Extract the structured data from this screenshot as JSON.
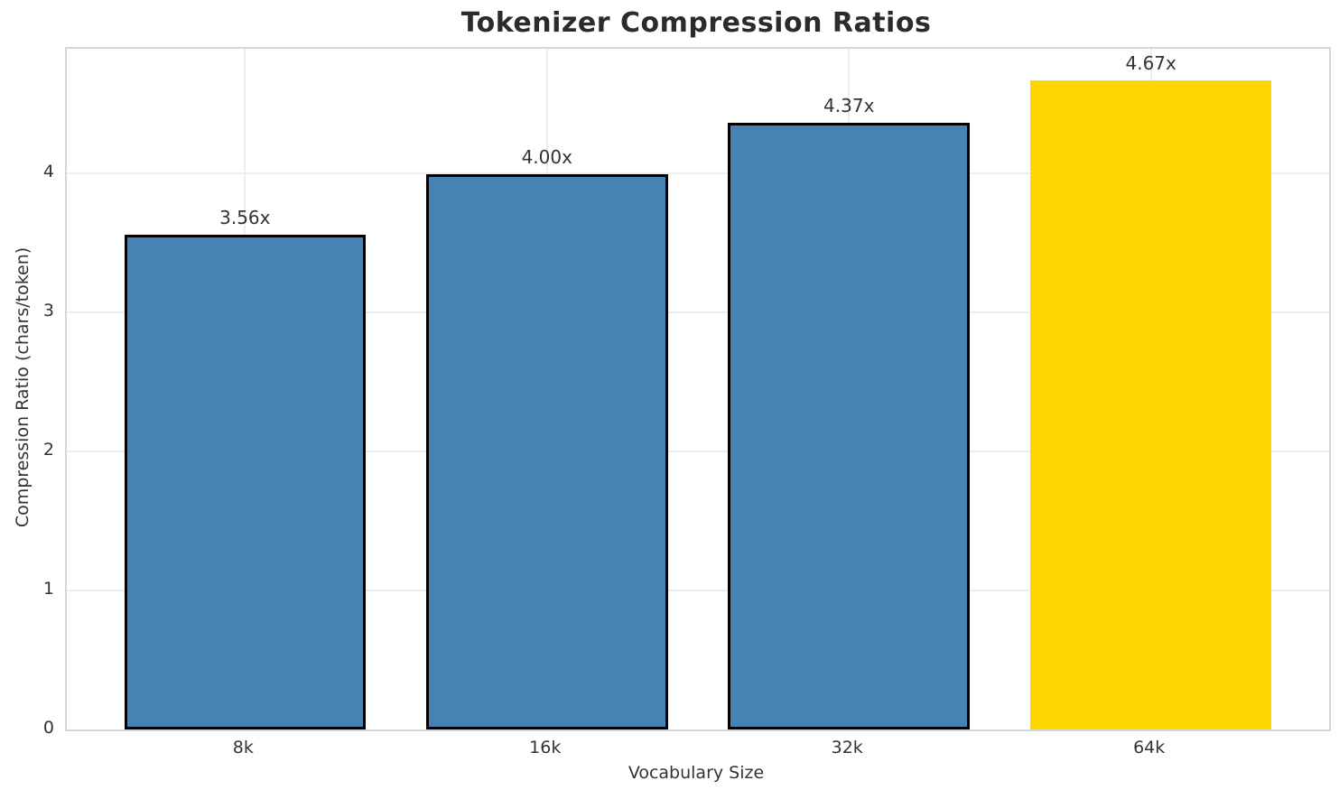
{
  "title": "Tokenizer Compression Ratios",
  "chart_data": {
    "type": "bar",
    "title": "Tokenizer Compression Ratios",
    "xlabel": "Vocabulary Size",
    "ylabel": "Compression Ratio (chars/token)",
    "categories": [
      "8k",
      "16k",
      "32k",
      "64k"
    ],
    "values": [
      3.56,
      4.0,
      4.37,
      4.67
    ],
    "bar_labels": [
      "3.56x",
      "4.00x",
      "4.37x",
      "4.67x"
    ],
    "bar_colors": [
      "#4682B4",
      "#4682B4",
      "#4682B4",
      "#FFD700"
    ],
    "bar_edge_colors": [
      "#000000",
      "#000000",
      "#000000",
      "none"
    ],
    "ylim": [
      0,
      4.9
    ],
    "yticks": [
      0,
      1,
      2,
      3,
      4
    ],
    "grid": true,
    "legend": "none",
    "colors": {
      "bar_default": "#4682B4",
      "bar_highlight": "#FFD700",
      "grid": "#ededed",
      "spine": "#d6d6d6",
      "text": "#333333",
      "title_text": "#2b2b2b"
    }
  }
}
